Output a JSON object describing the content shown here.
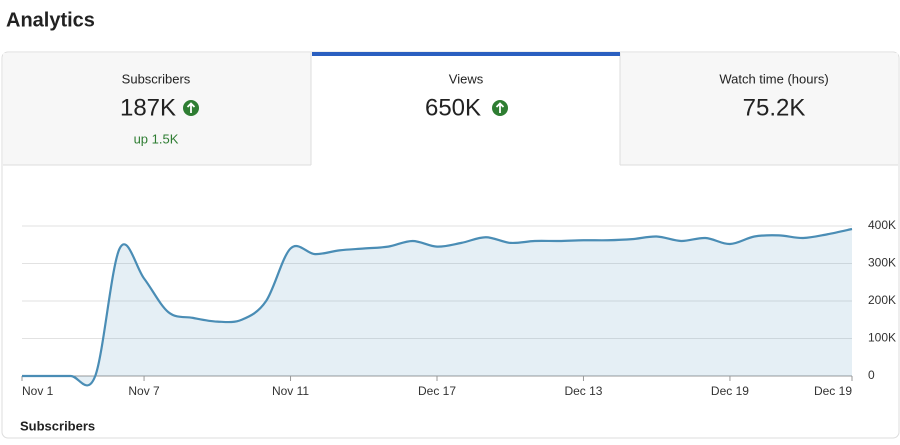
{
  "header": {
    "title": "Analytics"
  },
  "tabs": [
    {
      "label": "Subscribers",
      "value": "187K",
      "change": "up 1.5K"
    },
    {
      "label": "Views",
      "value": "650K"
    },
    {
      "label": "Watch time (hours)",
      "value": "75.2K"
    }
  ],
  "chart_data": {
    "type": "line",
    "categories": [
      "Nov 1",
      null,
      null,
      null,
      null,
      "Nov 7",
      null,
      null,
      null,
      null,
      null,
      "Nov 11",
      null,
      null,
      null,
      null,
      null,
      "Dec 17",
      null,
      null,
      null,
      null,
      null,
      "Dec 13",
      null,
      null,
      null,
      null,
      null,
      "Dec 19",
      null,
      null,
      null,
      null,
      "Dec 19"
    ],
    "values": [
      0,
      0,
      0,
      0,
      340000,
      260000,
      170000,
      155000,
      145000,
      150000,
      200000,
      340000,
      325000,
      335000,
      340000,
      345000,
      360000,
      345000,
      355000,
      370000,
      355000,
      360000,
      360000,
      362000,
      362000,
      365000,
      372000,
      360000,
      368000,
      352000,
      372000,
      375000,
      368000,
      378000,
      392000
    ],
    "color": "#4a8db5",
    "ylim": [
      0,
      400000
    ],
    "yticks": [
      0,
      {
        "value": 100000,
        "label": "100K"
      },
      {
        "value": 200000,
        "label": "200K"
      },
      {
        "value": 300000,
        "label": "300K"
      },
      {
        "value": 400000,
        "label": "400K"
      }
    ],
    "grid": true
  },
  "footer": {
    "label": "Subscribers"
  }
}
